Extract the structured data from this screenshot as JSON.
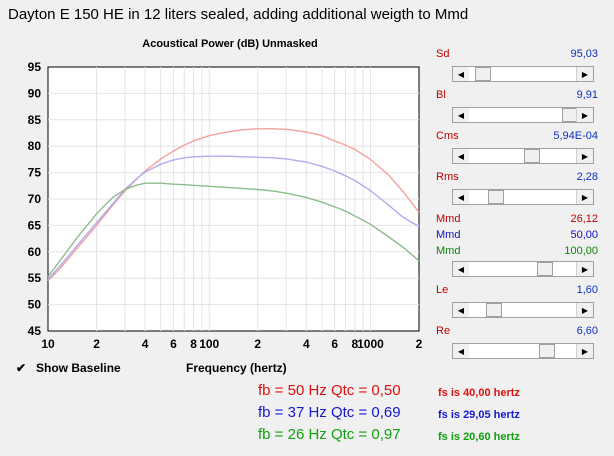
{
  "window_title": "Dayton E 150 HE in 12 liters sealed, adding additional weigth to Mmd",
  "chart_data": {
    "type": "line",
    "title": "Acoustical Power (dB)   Unmasked",
    "xlabel": "Frequency (hertz)",
    "ylabel": "",
    "xscale": "log",
    "xlim": [
      10,
      2000
    ],
    "ylim": [
      45,
      95
    ],
    "yticks": [
      "95",
      "90",
      "85",
      "80",
      "75",
      "70",
      "65",
      "60",
      "55",
      "50",
      "45"
    ],
    "xticks": [
      "10",
      "2",
      "4",
      "6",
      "8",
      "100",
      "2",
      "4",
      "6",
      "8",
      "1000",
      "2"
    ],
    "series": [
      {
        "color": "#f4a09c",
        "x": [
          10,
          12,
          15,
          20,
          25,
          30,
          35,
          40,
          50,
          60,
          70,
          80,
          100,
          130,
          160,
          200,
          250,
          300,
          400,
          500,
          600,
          700,
          800,
          1000,
          1300,
          1600,
          2000
        ],
        "y": [
          54.5,
          57,
          60.5,
          65,
          68.7,
          71.5,
          73.6,
          75.3,
          77.6,
          79.1,
          80.2,
          81,
          82,
          82.7,
          83.1,
          83.3,
          83.3,
          83.2,
          82.7,
          82,
          81,
          80.2,
          79.4,
          77.5,
          74.5,
          71.3,
          67.5
        ]
      },
      {
        "color": "#b0acf0",
        "x": [
          10,
          12,
          15,
          20,
          25,
          30,
          35,
          40,
          50,
          60,
          70,
          80,
          100,
          130,
          160,
          200,
          250,
          300,
          400,
          500,
          600,
          700,
          800,
          1000,
          1300,
          1600,
          2000
        ],
        "y": [
          54.8,
          57.5,
          61,
          65.5,
          69,
          71.8,
          73.7,
          75.1,
          76.6,
          77.4,
          77.8,
          78,
          78.1,
          78.1,
          78,
          77.9,
          77.8,
          77.6,
          77,
          76.2,
          75.3,
          74.4,
          73.5,
          71.6,
          68.8,
          66.5,
          64.8
        ]
      },
      {
        "color": "#8cbc8c",
        "x": [
          10,
          12,
          15,
          20,
          25,
          30,
          35,
          40,
          50,
          60,
          70,
          80,
          100,
          130,
          160,
          200,
          250,
          300,
          400,
          500,
          600,
          700,
          800,
          1000,
          1300,
          1600,
          2000
        ],
        "y": [
          55.3,
          58.5,
          62.5,
          67.2,
          70.2,
          71.8,
          72.6,
          73,
          73,
          72.8,
          72.7,
          72.6,
          72.4,
          72.2,
          72,
          71.8,
          71.5,
          71.1,
          70.3,
          69.4,
          68.5,
          67.7,
          66.8,
          65.2,
          62.8,
          60.8,
          58.3
        ]
      }
    ]
  },
  "show_baseline": {
    "label": "Show Baseline",
    "checked": true,
    "check_glyph": "✔"
  },
  "params": [
    {
      "label": "Sd",
      "value": "95,03",
      "label_color": "#c00000",
      "value_color": "#1030c0",
      "thumb": 0.06
    },
    {
      "label": "Bl",
      "value": "9,91",
      "label_color": "#c00000",
      "value_color": "#1030c0",
      "thumb": 0.99
    },
    {
      "label": "Cms",
      "value": "5,94E-04",
      "label_color": "#c00000",
      "value_color": "#1030c0",
      "thumb": 0.58
    },
    {
      "label": "Rms",
      "value": "2,28",
      "label_color": "#c00000",
      "value_color": "#1030c0",
      "thumb": 0.2
    },
    {
      "label": "Re",
      "value": "6,60",
      "label_color": "#c00000",
      "value_color": "#1030c0",
      "thumb": 0.74
    }
  ],
  "le": {
    "label": "Le",
    "value": "1,60",
    "label_color": "#c00000",
    "value_color": "#1030c0",
    "thumb": 0.18
  },
  "mmd": [
    {
      "label": "Mmd",
      "value": "26,12",
      "color": "#c00000"
    },
    {
      "label": "Mmd",
      "value": "50,00",
      "color": "#1010c0"
    },
    {
      "label": "Mmd",
      "value": "100,00",
      "color": "#108010"
    }
  ],
  "mmd_thumb": 0.72,
  "results": [
    {
      "big": "fb = 50 Hz Qtc = 0,50",
      "small": "fs is 40,00 hertz",
      "color": "#e01010"
    },
    {
      "big": "fb = 37 Hz Qtc = 0,69",
      "small": "fs is 29,05 hertz",
      "color": "#1818d0"
    },
    {
      "big": "fb = 26 Hz Qtc = 0,97",
      "small": "fs is 20,60 hertz",
      "color": "#10a010"
    }
  ],
  "icons": {
    "left_arrow": "◀",
    "right_arrow": "▶"
  }
}
